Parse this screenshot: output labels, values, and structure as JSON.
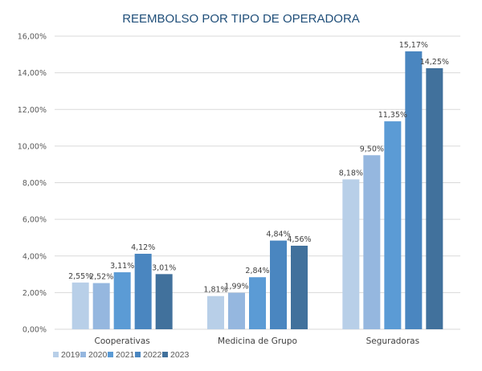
{
  "chart_data": {
    "type": "bar",
    "title": "REEMBOLSO POR TIPO DE OPERADORA",
    "xlabel": "",
    "ylabel": "",
    "categories": [
      "Cooperativas",
      "Medicina de Grupo",
      "Seguradoras"
    ],
    "series": [
      {
        "name": "2019",
        "color": "#b8cfe8",
        "values": [
          2.55,
          1.81,
          8.18
        ],
        "labels": [
          "2,55%",
          "1,81%",
          "8,18%"
        ]
      },
      {
        "name": "2020",
        "color": "#95b7df",
        "values": [
          2.52,
          1.99,
          9.5
        ],
        "labels": [
          "2,52%",
          "1,99%",
          "9,50%"
        ]
      },
      {
        "name": "2021",
        "color": "#5b9bd5",
        "values": [
          3.11,
          2.84,
          11.35
        ],
        "labels": [
          "3,11%",
          "2,84%",
          "11,35%"
        ]
      },
      {
        "name": "2022",
        "color": "#4a86c0",
        "values": [
          4.12,
          4.84,
          15.17
        ],
        "labels": [
          "4,12%",
          "4,84%",
          "15,17%"
        ]
      },
      {
        "name": "2023",
        "color": "#41719c",
        "values": [
          3.01,
          4.56,
          14.25
        ],
        "labels": [
          "3,01%",
          "4,56%",
          "14,25%"
        ]
      }
    ],
    "ylim": [
      0,
      16
    ],
    "yticks": [
      0,
      2,
      4,
      6,
      8,
      10,
      12,
      14,
      16
    ],
    "ytick_labels": [
      "0,00%",
      "2,00%",
      "4,00%",
      "6,00%",
      "8,00%",
      "10,00%",
      "12,00%",
      "14,00%",
      "16,00%"
    ],
    "grid": true,
    "legend_position": "bottom-left"
  }
}
